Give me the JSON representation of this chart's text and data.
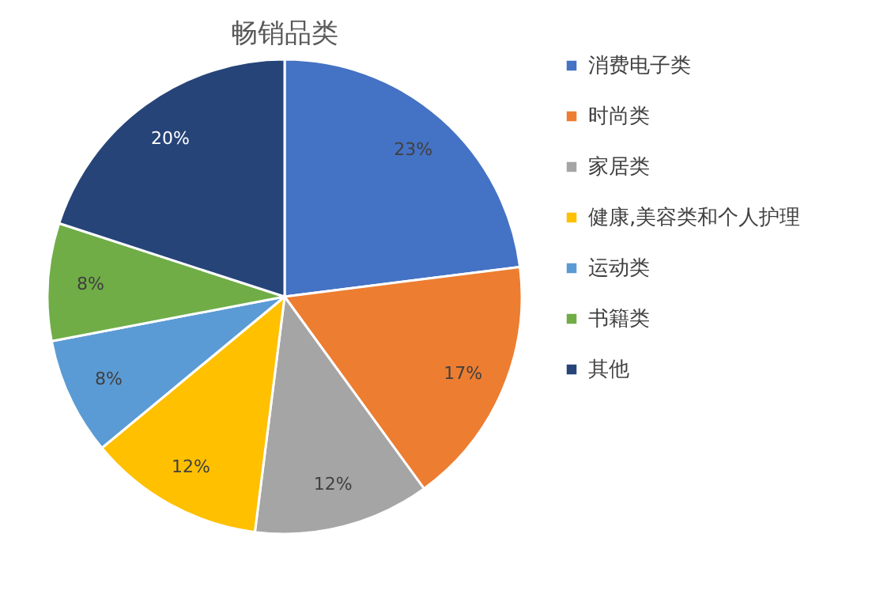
{
  "chart_data": {
    "type": "pie",
    "title": "畅销品类",
    "categories": [
      "消费电子类",
      "时尚类",
      "家居类",
      "健康,美容类和个人护理",
      "运动类",
      "书籍类",
      "其他"
    ],
    "values": [
      23,
      17,
      12,
      12,
      8,
      8,
      20
    ],
    "value_labels": [
      "23%",
      "17%",
      "12%",
      "12%",
      "8%",
      "8%",
      "20%"
    ],
    "colors": [
      "#4472c4",
      "#ed7d31",
      "#a5a5a5",
      "#ffc000",
      "#5b9bd5",
      "#70ad47",
      "#264478"
    ],
    "legend": "right"
  }
}
